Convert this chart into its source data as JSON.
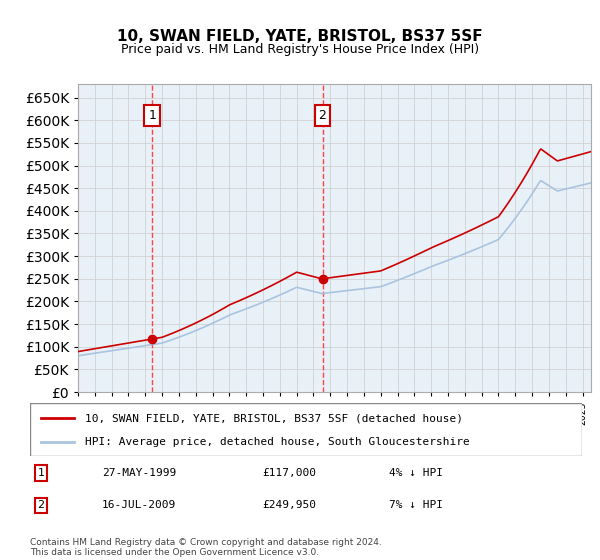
{
  "title": "10, SWAN FIELD, YATE, BRISTOL, BS37 5SF",
  "subtitle": "Price paid vs. HM Land Registry's House Price Index (HPI)",
  "legend_line1": "10, SWAN FIELD, YATE, BRISTOL, BS37 5SF (detached house)",
  "legend_line2": "HPI: Average price, detached house, South Gloucestershire",
  "sale1_label": "1",
  "sale1_date": "27-MAY-1999",
  "sale1_price": 117000,
  "sale1_year": 1999.41,
  "sale1_text": "27-MAY-1999",
  "sale1_amount": "£117,000",
  "sale1_hpi": "4% ↓ HPI",
  "sale2_label": "2",
  "sale2_date": "16-JUL-2009",
  "sale2_price": 249950,
  "sale2_year": 2009.54,
  "sale2_text": "16-JUL-2009",
  "sale2_amount": "£249,950",
  "sale2_hpi": "7% ↓ HPI",
  "copyright": "Contains HM Land Registry data © Crown copyright and database right 2024.\nThis data is licensed under the Open Government Licence v3.0.",
  "hpi_color": "#aac4e0",
  "sale_color": "#cc0000",
  "vline_color": "#ff4444",
  "background_color": "#e8f0f8",
  "plot_bg": "#ffffff",
  "ylim_min": 0,
  "ylim_max": 680000,
  "xmin": 1995.0,
  "xmax": 2025.5
}
